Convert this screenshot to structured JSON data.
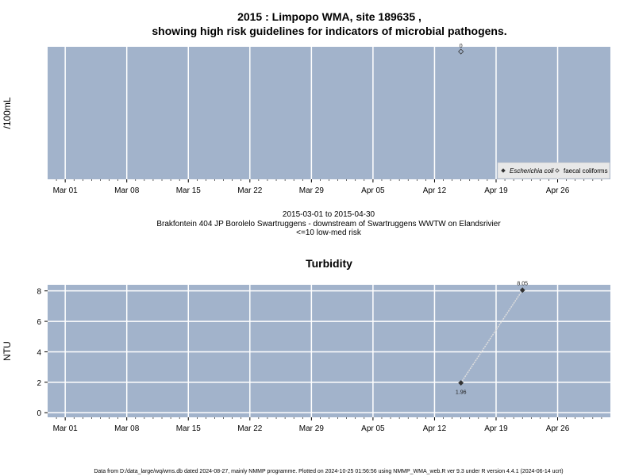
{
  "title_line1": "2015 : Limpopo WMA, site 189635 ,",
  "title_line2": "showing high risk guidelines for indicators of microbial pathogens.",
  "subtitle_dates": "2015-03-01 to 2015-04-30",
  "subtitle_site": "Brakfontein 404 JP Borolelo Swartruggens - downstream of Swartruggens WWTW on Elandsrivier",
  "subtitle_risk": "<=10 low-med risk",
  "footer": "Data from D:/data_large/wq/wms.db dated 2024-08-27, mainly NMMP programme. Plotted on 2024-10-25 01:56:56 using NMMP_WMA_web.R ver 9.3 under R version 4.4.1 (2024-06-14 ucrt)",
  "colors": {
    "panel": "#a2b3cb",
    "grid": "#ffffff",
    "point": "#333333",
    "line": "#dddddd"
  },
  "chart_data": [
    {
      "type": "scatter",
      "title": "",
      "ylabel": "/100mL",
      "xlabel": "",
      "x_ticks": [
        "Mar 01",
        "Mar 08",
        "Mar 15",
        "Mar 22",
        "Mar 29",
        "Apr 05",
        "Apr 12",
        "Apr 19",
        "Apr 26"
      ],
      "x_tick_dates": [
        "2015-03-01",
        "2015-03-08",
        "2015-03-15",
        "2015-03-22",
        "2015-03-29",
        "2015-04-05",
        "2015-04-12",
        "2015-04-19",
        "2015-04-26"
      ],
      "xlim": [
        "2015-02-27",
        "2015-05-02"
      ],
      "grid": true,
      "legend_position": "bottom-right",
      "series": [
        {
          "name": "Escherichia coli",
          "marker": "filled-diamond",
          "points": []
        },
        {
          "name": "faecal coliforms",
          "marker": "open-diamond",
          "points": [
            {
              "x": "2015-04-15",
              "y": 0,
              "label": "0"
            }
          ]
        }
      ]
    },
    {
      "type": "line",
      "title": "Turbidity",
      "ylabel": "NTU",
      "xlabel": "",
      "x_ticks": [
        "Mar 01",
        "Mar 08",
        "Mar 15",
        "Mar 22",
        "Mar 29",
        "Apr 05",
        "Apr 12",
        "Apr 19",
        "Apr 26"
      ],
      "x_tick_dates": [
        "2015-03-01",
        "2015-03-08",
        "2015-03-15",
        "2015-03-22",
        "2015-03-29",
        "2015-04-05",
        "2015-04-12",
        "2015-04-19",
        "2015-04-26"
      ],
      "xlim": [
        "2015-02-27",
        "2015-05-02"
      ],
      "ylim": [
        -0.3,
        8.4
      ],
      "y_ticks": [
        0,
        2,
        4,
        6,
        8
      ],
      "grid": true,
      "series": [
        {
          "name": "",
          "points": [
            {
              "x": "2015-04-15",
              "y": 1.96,
              "label": "1.96"
            },
            {
              "x": "2015-04-22",
              "y": 8.05,
              "label": "8.05"
            }
          ]
        }
      ]
    }
  ]
}
